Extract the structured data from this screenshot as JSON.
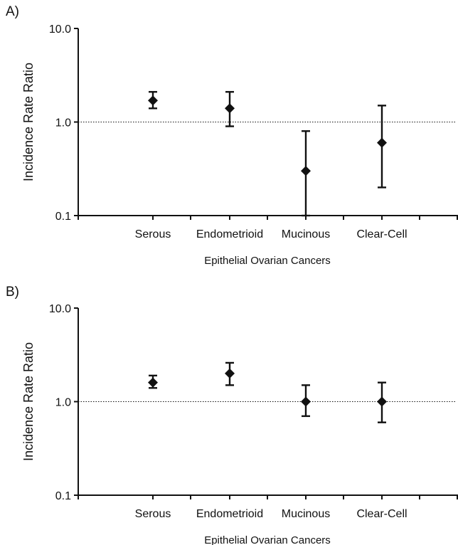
{
  "chart_data": [
    {
      "panel_label": "A)",
      "type": "scatter",
      "y_scale": "log",
      "ylim": [
        0.1,
        10.0
      ],
      "yticks": [
        "0.1",
        "1.0",
        "10.0"
      ],
      "ylabel": "Incidence Rate Ratio",
      "xlabel": "Epithelial Ovarian Cancers",
      "reference_line": 1.0,
      "categories": [
        "Serous",
        "Endometrioid",
        "Mucinous",
        "Clear-Cell"
      ],
      "points": [
        {
          "category": "Serous",
          "estimate": 1.7,
          "lower": 1.4,
          "upper": 2.1
        },
        {
          "category": "Endometrioid",
          "estimate": 1.4,
          "lower": 0.9,
          "upper": 2.1
        },
        {
          "category": "Mucinous",
          "estimate": 0.3,
          "lower": 0.1,
          "upper": 0.8
        },
        {
          "category": "Clear-Cell",
          "estimate": 0.6,
          "lower": 0.2,
          "upper": 1.5
        }
      ]
    },
    {
      "panel_label": "B)",
      "type": "scatter",
      "y_scale": "log",
      "ylim": [
        0.1,
        10.0
      ],
      "yticks": [
        "0.1",
        "1.0",
        "10.0"
      ],
      "ylabel": "Incidence Rate Ratio",
      "xlabel": "Epithelial Ovarian Cancers",
      "reference_line": 1.0,
      "categories": [
        "Serous",
        "Endometrioid",
        "Mucinous",
        "Clear-Cell"
      ],
      "points": [
        {
          "category": "Serous",
          "estimate": 1.6,
          "lower": 1.4,
          "upper": 1.9
        },
        {
          "category": "Endometrioid",
          "estimate": 2.0,
          "lower": 1.5,
          "upper": 2.6
        },
        {
          "category": "Mucinous",
          "estimate": 1.0,
          "lower": 0.7,
          "upper": 1.5
        },
        {
          "category": "Clear-Cell",
          "estimate": 1.0,
          "lower": 0.6,
          "upper": 1.6
        }
      ]
    }
  ]
}
